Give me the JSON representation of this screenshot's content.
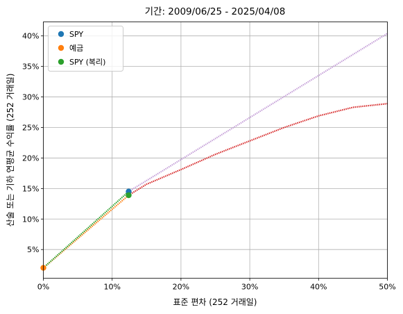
{
  "chart_data": {
    "type": "line",
    "title": "기간: 2009/06/25 - 2025/04/08",
    "xlabel": "표준 편차 (252 거래일)",
    "ylabel": "산술 또는 기하 연평균 수익률 (252 거래일)",
    "xlim": [
      0,
      50
    ],
    "ylim": [
      0.3,
      42.3
    ],
    "x_unit": "%",
    "y_unit": "%",
    "xticks": [
      0,
      10,
      20,
      30,
      40,
      50
    ],
    "xtick_labels": [
      "0%",
      "10%",
      "20%",
      "30%",
      "40%",
      "50%"
    ],
    "yticks": [
      5,
      10,
      15,
      20,
      25,
      30,
      35,
      40
    ],
    "ytick_labels": [
      "5%",
      "10%",
      "15%",
      "20%",
      "25%",
      "30%",
      "35%",
      "40%"
    ],
    "grid": true,
    "legend_position": "top-left",
    "legend": [
      {
        "label": "SPY",
        "color": "#1f77b4"
      },
      {
        "label": "예금",
        "color": "#ff7f0e"
      },
      {
        "label": "SPY (복리)",
        "color": "#2ca02c"
      }
    ],
    "lines": [
      {
        "color": "#ff7f0e",
        "style": "dotted",
        "x": [
          0,
          12.4
        ],
        "y": [
          2.0,
          13.9
        ]
      },
      {
        "color": "#2ca02c",
        "style": "dotted",
        "x": [
          0,
          12.4
        ],
        "y": [
          2.0,
          14.5
        ]
      },
      {
        "color": "#c5a0d8",
        "style": "dotted",
        "x": [
          12.4,
          50
        ],
        "y": [
          14.5,
          40.4
        ]
      },
      {
        "color": "#d62728",
        "style": "dotted",
        "x": [
          12.4,
          15,
          20,
          25,
          30,
          35,
          40,
          45,
          50
        ],
        "y": [
          13.9,
          15.7,
          18.1,
          20.6,
          22.8,
          25.0,
          26.9,
          28.3,
          28.9
        ]
      }
    ],
    "points": [
      {
        "series": "SPY",
        "color": "#1f77b4",
        "x": 12.4,
        "y": 14.5
      },
      {
        "series": "예금",
        "color": "#ff7f0e",
        "x": 0,
        "y": 2.0
      },
      {
        "series": "SPY (복리)",
        "color": "#2ca02c",
        "x": 12.4,
        "y": 13.9
      }
    ]
  }
}
